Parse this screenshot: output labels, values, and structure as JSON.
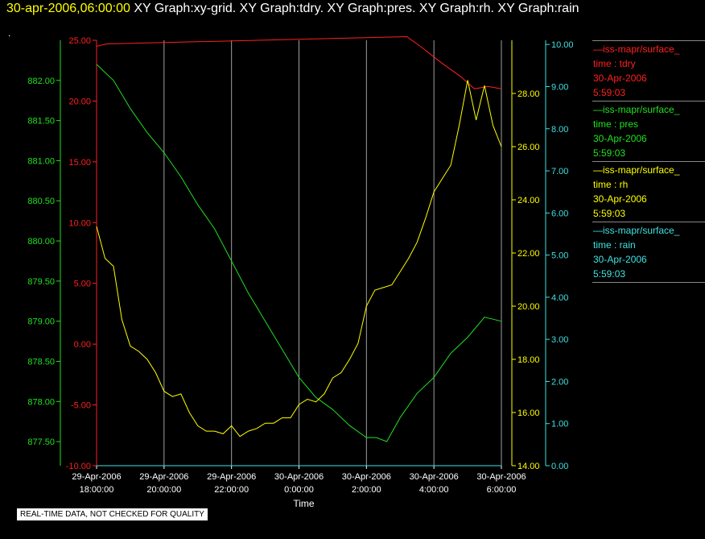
{
  "header": {
    "timestamp": "30-apr-2006,06:00:00",
    "graphs": "XY Graph:xy-grid.  XY Graph:tdry.  XY Graph:pres.  XY Graph:rh.  XY Graph:rain"
  },
  "dot": ".",
  "disclaimer": "REAL-TIME DATA, NOT CHECKED FOR QUALITY",
  "legend": [
    {
      "line": "—iss-mapr/surface_",
      "var": "time : tdry",
      "date": "30-Apr-2006",
      "time": "5:59:03",
      "color": "#ff2020"
    },
    {
      "line": "—iss-mapr/surface_",
      "var": "time : pres",
      "date": "30-Apr-2006",
      "time": "5:59:03",
      "color": "#20e020"
    },
    {
      "line": "—iss-mapr/surface_",
      "var": "time : rh",
      "date": "30-Apr-2006",
      "time": "5:59:03",
      "color": "#ffff00"
    },
    {
      "line": "—iss-mapr/surface_",
      "var": "time : rain",
      "date": "30-Apr-2006",
      "time": "5:59:03",
      "color": "#40e0e0"
    }
  ],
  "chart_data": {
    "type": "line",
    "xlabel": "Time",
    "x_ticks": [
      {
        "date": "29-Apr-2006",
        "time": "18:00:00"
      },
      {
        "date": "29-Apr-2006",
        "time": "20:00:00"
      },
      {
        "date": "29-Apr-2006",
        "time": "22:00:00"
      },
      {
        "date": "30-Apr-2006",
        "time": "0:00:00"
      },
      {
        "date": "30-Apr-2006",
        "time": "2:00:00"
      },
      {
        "date": "30-Apr-2006",
        "time": "4:00:00"
      },
      {
        "date": "30-Apr-2006",
        "time": "6:00:00"
      }
    ],
    "x_hours": [
      0,
      2,
      4,
      6,
      8,
      10,
      12
    ],
    "xlim": [
      0,
      12
    ],
    "grid": true,
    "legend_position": "right",
    "axes": {
      "tdry": {
        "ylim": [
          -10,
          25
        ],
        "ticks": [
          "25.00",
          "20.00",
          "15.00",
          "10.00",
          "5.00",
          "0.00",
          "-5.00",
          "-10.00"
        ],
        "tick_values": [
          25,
          20,
          15,
          10,
          5,
          0,
          -5,
          -10
        ],
        "color": "#ff2020"
      },
      "pres": {
        "ylim": [
          877.2,
          882.5
        ],
        "ticks": [
          "882.00",
          "881.50",
          "881.00",
          "880.50",
          "880.00",
          "879.50",
          "879.00",
          "878.50",
          "878.00",
          "877.50"
        ],
        "tick_values": [
          882,
          881.5,
          881,
          880.5,
          880,
          879.5,
          879,
          878.5,
          878,
          877.5
        ],
        "color": "#20e020"
      },
      "rh": {
        "ylim": [
          14,
          30
        ],
        "ticks": [
          "28.00",
          "26.00",
          "24.00",
          "22.00",
          "20.00",
          "18.00",
          "16.00",
          "14.00"
        ],
        "tick_values": [
          28,
          26,
          24,
          22,
          20,
          18,
          16,
          14
        ],
        "color": "#ffff00"
      },
      "rain": {
        "ylim": [
          0,
          10.1
        ],
        "ticks": [
          "10.00",
          "9.00",
          "8.00",
          "7.00",
          "6.00",
          "5.00",
          "4.00",
          "3.00",
          "2.00",
          "1.00",
          "0.00"
        ],
        "tick_values": [
          10,
          9,
          8,
          7,
          6,
          5,
          4,
          3,
          2,
          1,
          0
        ],
        "color": "#40e0e0"
      }
    },
    "series": [
      {
        "name": "tdry",
        "color": "#ff2020",
        "axis": "tdry",
        "x": [
          0,
          0.3,
          9.2,
          9.6,
          10.2,
          10.8,
          11.2,
          11.6,
          12.0
        ],
        "y": [
          24.5,
          24.7,
          25.3,
          24.5,
          23.2,
          22.0,
          21.0,
          21.2,
          21.0
        ]
      },
      {
        "name": "pres",
        "color": "#20e020",
        "axis": "pres",
        "x": [
          0,
          0.5,
          1,
          1.5,
          2,
          2.5,
          3,
          3.5,
          4,
          4.5,
          5,
          5.5,
          6,
          6.5,
          7,
          7.5,
          8,
          8.3,
          8.6,
          9,
          9.5,
          10,
          10.5,
          11,
          11.5,
          12
        ],
        "y": [
          882.2,
          882.0,
          881.65,
          881.35,
          881.1,
          880.8,
          880.45,
          880.15,
          879.75,
          879.35,
          879.0,
          878.65,
          878.3,
          878.05,
          877.9,
          877.7,
          877.55,
          877.55,
          877.5,
          877.8,
          878.1,
          878.3,
          878.6,
          878.8,
          879.05,
          879.0
        ]
      },
      {
        "name": "rh",
        "color": "#ffff00",
        "axis": "rh",
        "x": [
          0,
          0.25,
          0.5,
          0.75,
          1,
          1.25,
          1.5,
          1.75,
          2,
          2.25,
          2.5,
          2.75,
          3,
          3.25,
          3.5,
          3.75,
          4,
          4.25,
          4.5,
          4.75,
          5,
          5.25,
          5.5,
          5.75,
          6,
          6.25,
          6.5,
          6.75,
          7,
          7.25,
          7.5,
          7.75,
          8,
          8.25,
          8.5,
          8.75,
          9,
          9.25,
          9.5,
          9.75,
          10,
          10.25,
          10.5,
          10.75,
          11,
          11.25,
          11.5,
          11.75,
          12
        ],
        "y": [
          23.0,
          21.8,
          21.5,
          19.5,
          18.5,
          18.3,
          18.0,
          17.5,
          16.8,
          16.6,
          16.7,
          16.0,
          15.5,
          15.3,
          15.3,
          15.2,
          15.5,
          15.1,
          15.3,
          15.4,
          15.6,
          15.6,
          15.8,
          15.8,
          16.3,
          16.5,
          16.4,
          16.7,
          17.3,
          17.5,
          18.0,
          18.6,
          20.0,
          20.6,
          20.7,
          20.8,
          21.3,
          21.8,
          22.4,
          23.3,
          24.3,
          24.8,
          25.3,
          26.8,
          28.5,
          27.0,
          28.3,
          26.8,
          26.0
        ]
      },
      {
        "name": "rain",
        "color": "#40e0e0",
        "axis": "rain",
        "x": [
          0,
          12
        ],
        "y": [
          0,
          0
        ]
      }
    ]
  }
}
